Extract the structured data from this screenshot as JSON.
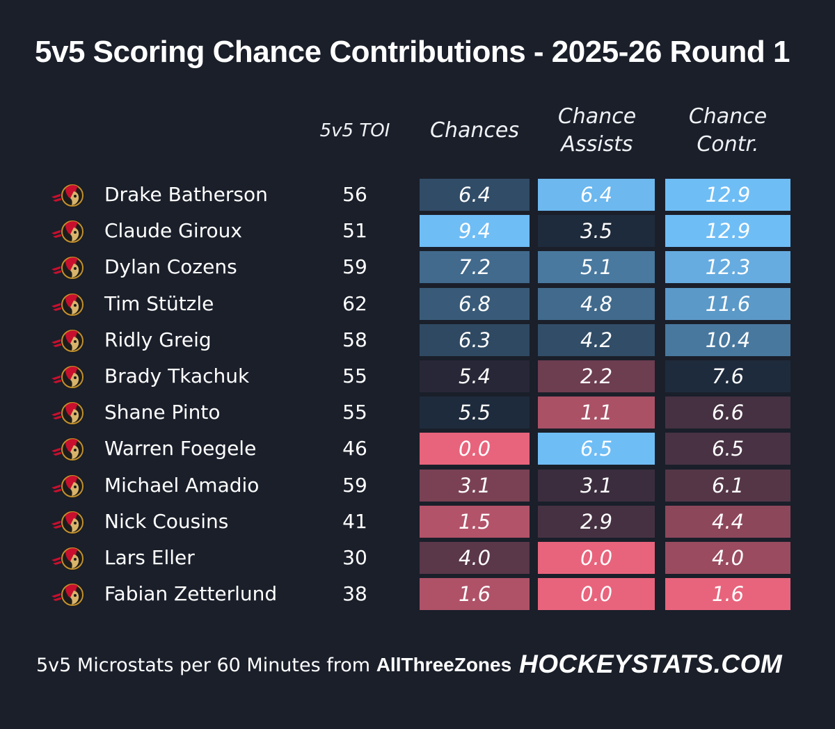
{
  "chart_data": {
    "type": "table",
    "title": "5v5 Scoring Chance Contributions - 2025-26 Round 1",
    "columns": {
      "toi": "5v5 TOI",
      "chances": "Chances",
      "assists_line1": "Chance",
      "assists_line2": "Assists",
      "contr_line1": "Chance",
      "contr_line2": "Contr."
    },
    "rows": [
      {
        "player": "Drake Batherson",
        "toi": "56",
        "chances": "6.4",
        "assists": "6.4",
        "contr": "12.9"
      },
      {
        "player": "Claude Giroux",
        "toi": "51",
        "chances": "9.4",
        "assists": "3.5",
        "contr": "12.9"
      },
      {
        "player": "Dylan Cozens",
        "toi": "59",
        "chances": "7.2",
        "assists": "5.1",
        "contr": "12.3"
      },
      {
        "player": "Tim Stützle",
        "toi": "62",
        "chances": "6.8",
        "assists": "4.8",
        "contr": "11.6"
      },
      {
        "player": "Ridly Greig",
        "toi": "58",
        "chances": "6.3",
        "assists": "4.2",
        "contr": "10.4"
      },
      {
        "player": "Brady Tkachuk",
        "toi": "55",
        "chances": "5.4",
        "assists": "2.2",
        "contr": "7.6"
      },
      {
        "player": "Shane Pinto",
        "toi": "55",
        "chances": "5.5",
        "assists": "1.1",
        "contr": "6.6"
      },
      {
        "player": "Warren Foegele",
        "toi": "46",
        "chances": "0.0",
        "assists": "6.5",
        "contr": "6.5"
      },
      {
        "player": "Michael Amadio",
        "toi": "59",
        "chances": "3.1",
        "assists": "3.1",
        "contr": "6.1"
      },
      {
        "player": "Nick Cousins",
        "toi": "41",
        "chances": "1.5",
        "assists": "2.9",
        "contr": "4.4"
      },
      {
        "player": "Lars Eller",
        "toi": "30",
        "chances": "4.0",
        "assists": "0.0",
        "contr": "4.0"
      },
      {
        "player": "Fabian Zetterlund",
        "toi": "38",
        "chances": "1.6",
        "assists": "0.0",
        "contr": "1.6"
      }
    ],
    "colors": {
      "background": "#1a1f2a",
      "high": "#6fbdf5",
      "mid": "#1a2332",
      "low": "#e8647c"
    }
  },
  "footer": {
    "source_prefix": "5v5 Microstats per 60 Minutes from ",
    "source_name": "AllThreeZones",
    "brand": "HOCKEYSTATS.COM"
  },
  "logo": {
    "icon": "senators-logo-icon"
  }
}
